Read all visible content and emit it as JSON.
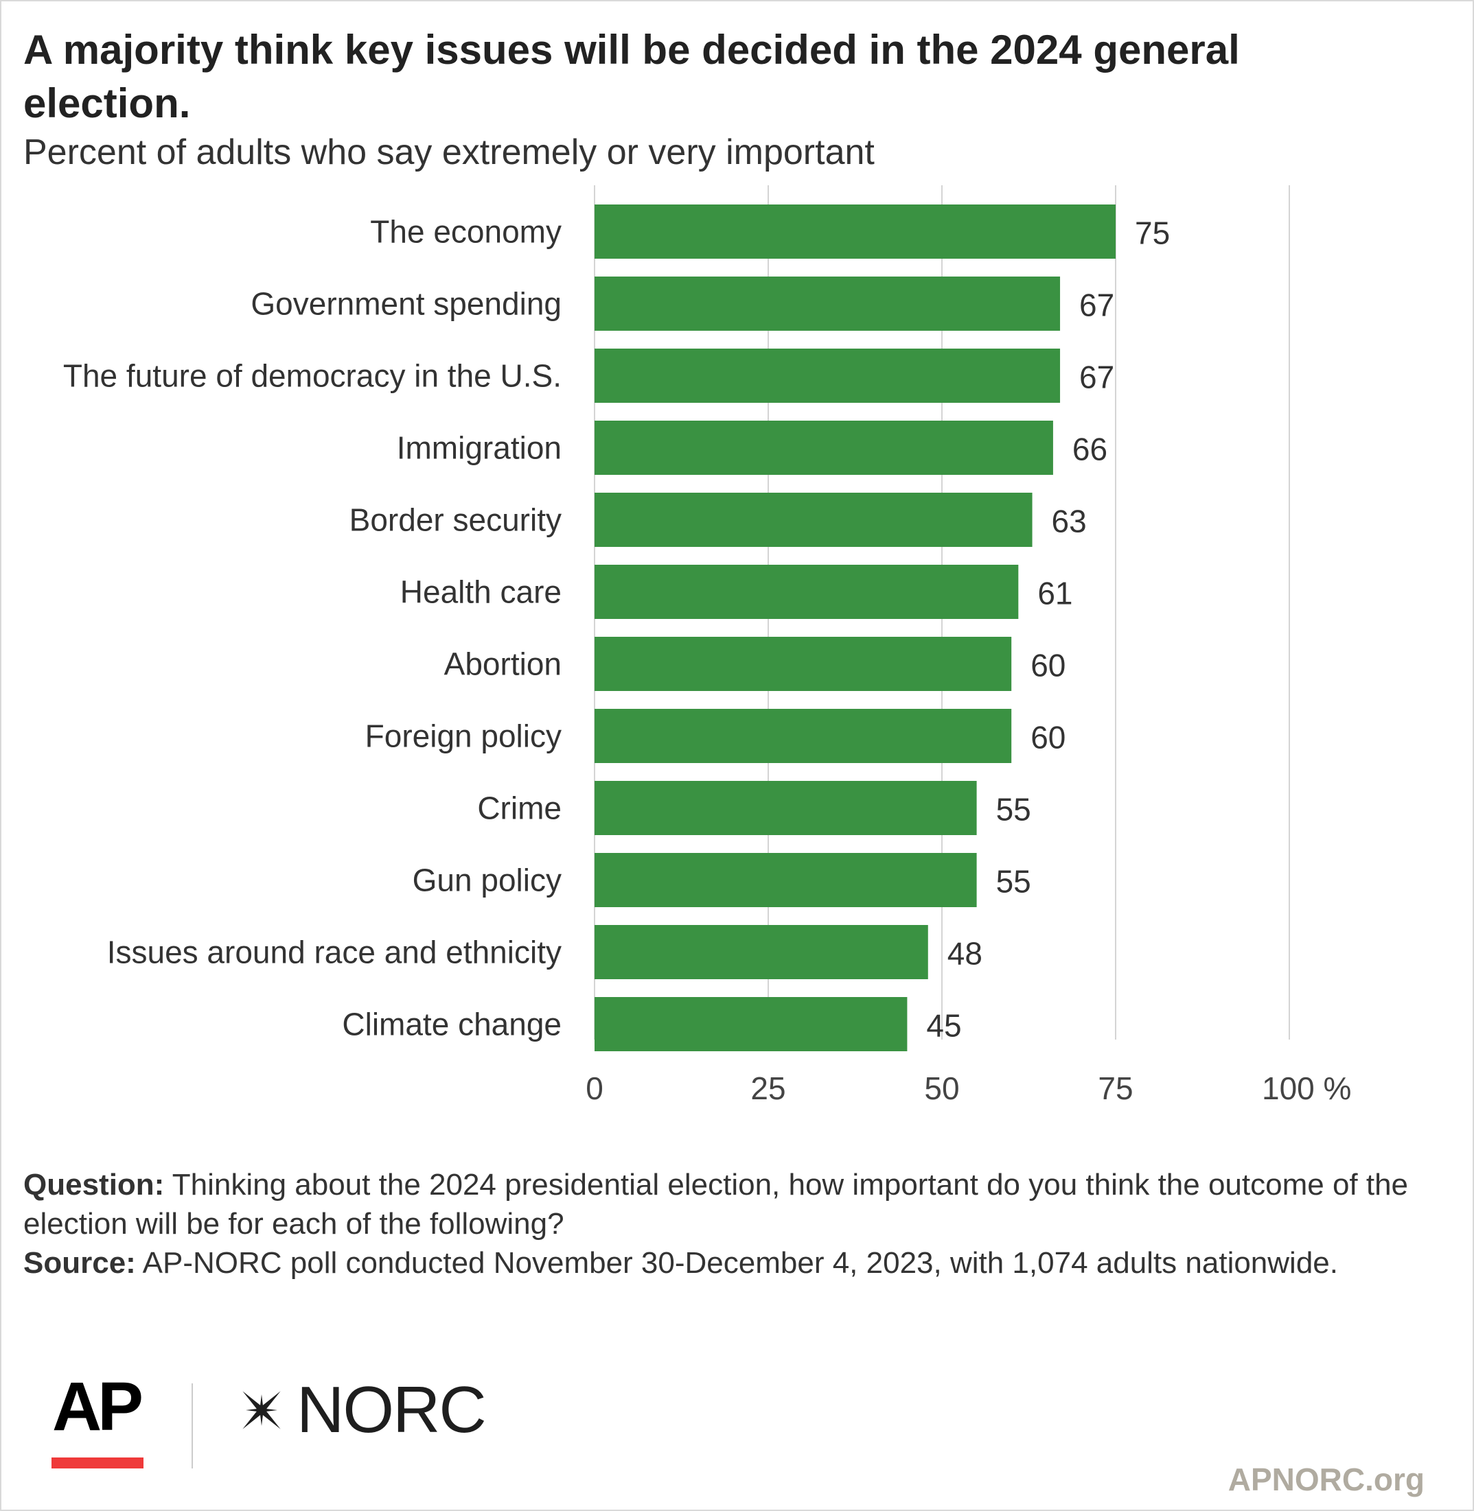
{
  "header": {
    "title": "A majority think key issues will be decided in the 2024 general election.",
    "subtitle": "Percent of adults who say extremely or very important"
  },
  "chart_data": {
    "type": "bar",
    "orientation": "horizontal",
    "categories": [
      "The economy",
      "Government spending",
      "The future of democracy in the U.S.",
      "Immigration",
      "Border security",
      "Health care",
      "Abortion",
      "Foreign policy",
      "Crime",
      "Gun policy",
      "Issues around race and ethnicity",
      "Climate change"
    ],
    "values": [
      75,
      67,
      67,
      66,
      63,
      61,
      60,
      60,
      55,
      55,
      48,
      45
    ],
    "xlim": [
      0,
      100
    ],
    "x_ticks": [
      0,
      25,
      50,
      75,
      100
    ],
    "x_tick_labels": [
      "0",
      "25",
      "50",
      "75",
      "100 %"
    ],
    "grid": true,
    "bar_color": "#3a9242"
  },
  "notes": {
    "question_label": "Question:",
    "question_text": "Thinking about the 2024 presidential election, how important do you think the outcome of the election will be for each of the following?",
    "source_label": "Source:",
    "source_text": "AP-NORC poll conducted November 30-December 4, 2023, with 1,074 adults nationwide."
  },
  "footer": {
    "ap_logo": "AP",
    "norc_logo": "NORC",
    "website": "APNORC.org"
  },
  "colors": {
    "bar": "#3a9242",
    "grid": "#d4d4d4",
    "ap_red": "#ef3a3a",
    "website": "#b0aba0"
  }
}
